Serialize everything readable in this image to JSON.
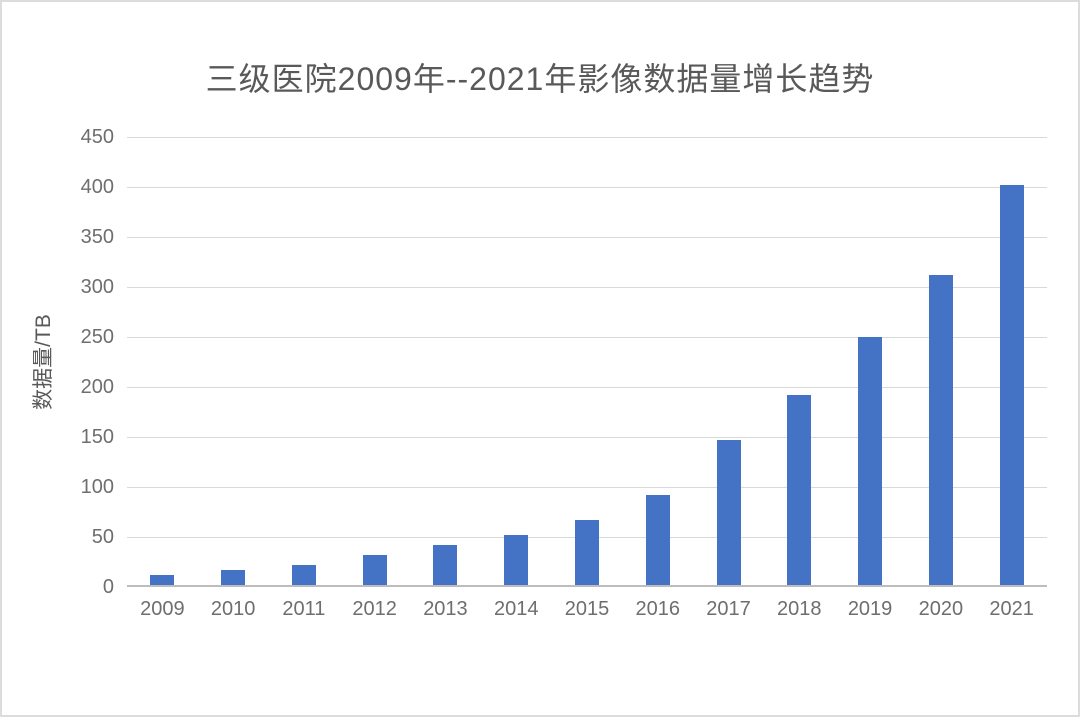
{
  "window": {
    "background": "#ffffff",
    "border_color": "#dcdcdc"
  },
  "chart_data": {
    "type": "bar",
    "title": "三级医院2009年--2021年影像数据量增长趋势",
    "xlabel": "",
    "ylabel": "数据量/TB",
    "categories": [
      "2009",
      "2010",
      "2011",
      "2012",
      "2013",
      "2014",
      "2015",
      "2016",
      "2017",
      "2018",
      "2019",
      "2020",
      "2021"
    ],
    "values": [
      10,
      15,
      20,
      30,
      40,
      50,
      65,
      90,
      145,
      190,
      248,
      310,
      400
    ],
    "unit": "TB",
    "ylim": [
      0,
      450
    ],
    "ytick_step": 50,
    "yticks": [
      0,
      50,
      100,
      150,
      200,
      250,
      300,
      350,
      400,
      450
    ],
    "grid": true,
    "legend_position": "none",
    "colors": {
      "bar": "#4472c4",
      "gridline": "#d9d9d9",
      "axis_line": "#bdbdbd",
      "tick_text": "#6e6e6e",
      "title_text": "#595959"
    }
  }
}
